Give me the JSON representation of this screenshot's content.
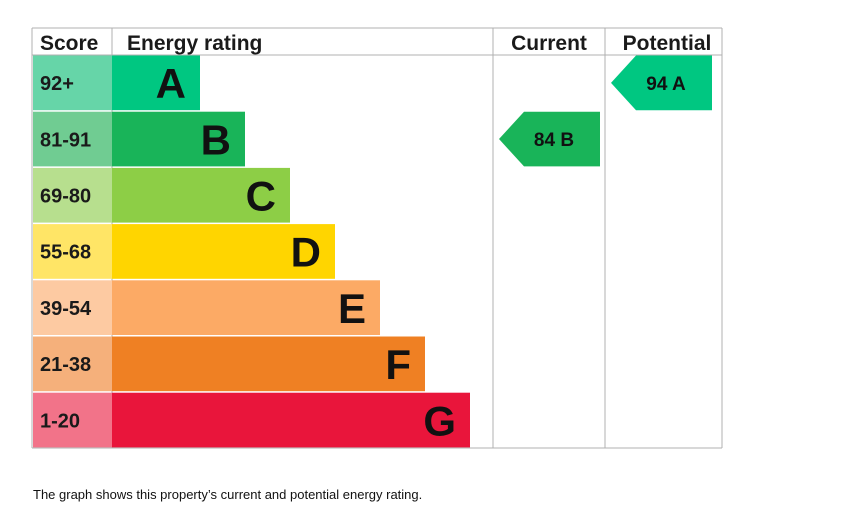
{
  "chart_data": {
    "type": "bar",
    "headers": {
      "score": "Score",
      "rating": "Energy rating",
      "current": "Current",
      "potential": "Potential"
    },
    "bands": [
      {
        "score": "92+",
        "letter": "A",
        "color": "#00c781",
        "score_bg": "#66d5a8"
      },
      {
        "score": "81-91",
        "letter": "B",
        "color": "#19b459",
        "score_bg": "#70cc92"
      },
      {
        "score": "69-80",
        "letter": "C",
        "color": "#8dce46",
        "score_bg": "#b7df8e"
      },
      {
        "score": "55-68",
        "letter": "D",
        "color": "#ffd500",
        "score_bg": "#ffe566"
      },
      {
        "score": "39-54",
        "letter": "E",
        "color": "#fcaa65",
        "score_bg": "#fdcaa2"
      },
      {
        "score": "21-38",
        "letter": "F",
        "color": "#ef8023",
        "score_bg": "#f5b07b"
      },
      {
        "score": "1-20",
        "letter": "G",
        "color": "#e9153b",
        "score_bg": "#f27389"
      }
    ],
    "current": {
      "value": 84,
      "letter": "B",
      "label": "84  B",
      "color": "#19b459"
    },
    "potential": {
      "value": 94,
      "letter": "A",
      "label": "94  A",
      "color": "#00c781"
    }
  },
  "caption": "The graph shows this property’s current and potential energy rating."
}
